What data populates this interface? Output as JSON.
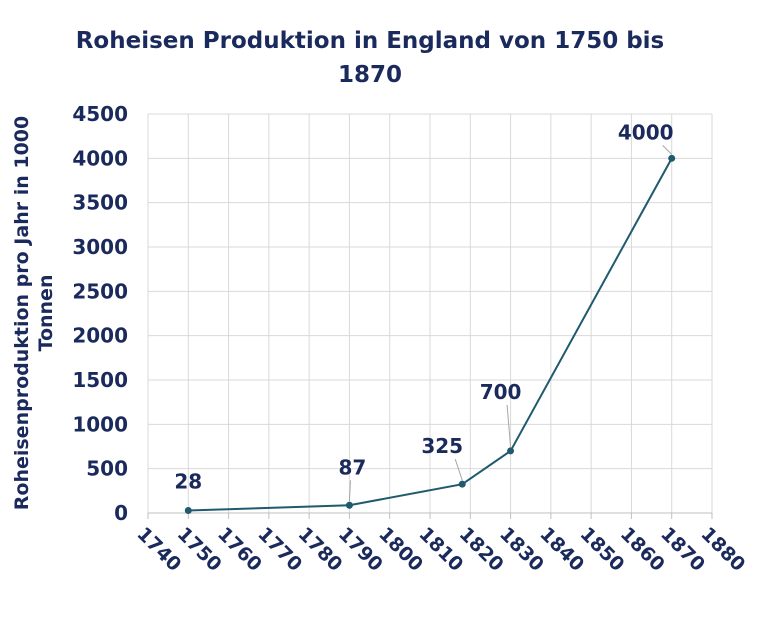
{
  "chart_data": {
    "type": "line",
    "title": "Roheisen Produktion in England von 1750 bis 1870",
    "xlabel": "",
    "ylabel": "Roheisenproduktion pro Jahr in 1000 Tonnen",
    "xlim": [
      1740,
      1880
    ],
    "ylim": [
      0,
      4500
    ],
    "x_ticks": [
      1740,
      1750,
      1760,
      1770,
      1780,
      1790,
      1800,
      1810,
      1820,
      1830,
      1840,
      1850,
      1860,
      1870,
      1880
    ],
    "y_ticks": [
      0,
      500,
      1000,
      1500,
      2000,
      2500,
      3000,
      3500,
      4000,
      4500
    ],
    "grid": true,
    "series": [
      {
        "x": [
          1750,
          1790,
          1818,
          1830,
          1870
        ],
        "values": [
          28,
          87,
          325,
          700,
          4000
        ],
        "labels": [
          "28",
          "87",
          "325",
          "700",
          "4000"
        ]
      }
    ],
    "colors": {
      "line": "#1f5a6e",
      "text": "#1b2a5c",
      "grid": "#d9d9d9"
    }
  }
}
